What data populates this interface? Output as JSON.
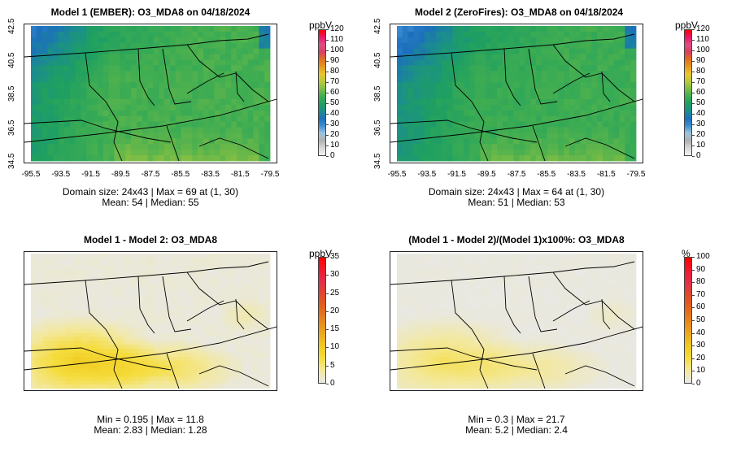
{
  "chart_data": [
    {
      "type": "heatmap",
      "title": "Model 1 (EMBER): O3_MDA8 on 04/18/2024",
      "unit": "ppbV",
      "x_ticks": [
        "-95.5",
        "-93.5",
        "-91.5",
        "-89.5",
        "-87.5",
        "-85.5",
        "-83.5",
        "-81.5",
        "-79.5"
      ],
      "y_ticks": [
        "42.5",
        "40.5",
        "38.5",
        "36.5",
        "34.5"
      ],
      "xlim": [
        -95.5,
        -79.5
      ],
      "ylim": [
        34.5,
        42.5
      ],
      "colorbar": {
        "min": 0,
        "max": 120,
        "labels": [
          "120",
          "110",
          "100",
          "90",
          "80",
          "70",
          "60",
          "50",
          "40",
          "30",
          "20",
          "10",
          "0"
        ]
      },
      "stats": {
        "line1": "Domain size: 24x43 | Max = 69 at (1, 30)",
        "line2": "Mean: 54 |  Median: 55"
      },
      "palette": "ozone",
      "grid": {
        "cols": 24,
        "rows": 43
      }
    },
    {
      "type": "heatmap",
      "title": "Model 2 (ZeroFires): O3_MDA8 on 04/18/2024",
      "unit": "ppbV",
      "x_ticks": [
        "-95.5",
        "-93.5",
        "-91.5",
        "-89.5",
        "-87.5",
        "-85.5",
        "-83.5",
        "-81.5",
        "-79.5"
      ],
      "y_ticks": [
        "42.5",
        "40.5",
        "38.5",
        "36.5",
        "34.5"
      ],
      "xlim": [
        -95.5,
        -79.5
      ],
      "ylim": [
        34.5,
        42.5
      ],
      "colorbar": {
        "min": 0,
        "max": 120,
        "labels": [
          "120",
          "110",
          "100",
          "90",
          "80",
          "70",
          "60",
          "50",
          "40",
          "30",
          "20",
          "10",
          "0"
        ]
      },
      "stats": {
        "line1": "Domain size: 24x43 | Max = 64 at (1, 30)",
        "line2": "Mean: 51 |  Median: 53"
      },
      "palette": "ozone",
      "grid": {
        "cols": 24,
        "rows": 43
      }
    },
    {
      "type": "heatmap",
      "title": "Model 1 - Model 2: O3_MDA8",
      "unit": "ppbV",
      "colorbar": {
        "min": 0,
        "max": 35,
        "labels": [
          "35",
          "30",
          "25",
          "20",
          "15",
          "10",
          "5",
          "0"
        ]
      },
      "stats": {
        "line1": "Min = 0.195 | Max = 11.8",
        "line2": "Mean: 2.83 |  Median: 1.28"
      },
      "palette": "difference"
    },
    {
      "type": "heatmap",
      "title": "(Model 1 - Model 2)/(Model 1)x100%: O3_MDA8",
      "unit": "%",
      "colorbar": {
        "min": 0,
        "max": 100,
        "labels": [
          "100",
          "90",
          "80",
          "70",
          "60",
          "50",
          "40",
          "30",
          "20",
          "10",
          "0"
        ]
      },
      "stats": {
        "line1": "Min = 0.3 | Max = 21.7",
        "line2": "Mean: 5.2 |  Median: 2.4"
      },
      "palette": "difference"
    }
  ],
  "colors": {
    "ozone_scale": [
      "#f2f2f2",
      "#d6d6d6",
      "#b0b0b0",
      "#9dc3e0",
      "#3d8fd1",
      "#1c6fbd",
      "#1b8f8a",
      "#1fa060",
      "#3fad52",
      "#7cbd45",
      "#b8c93c",
      "#e8c72e",
      "#e99a1e",
      "#e07020",
      "#d84060",
      "#e04d86",
      "#e8196a",
      "#ff0000"
    ],
    "diff_scale": [
      "#e8e8e8",
      "#f3e89a",
      "#f5dc3a",
      "#f0c820",
      "#eba61e",
      "#e6841c",
      "#e2641c",
      "#df4a2a",
      "#e2304a",
      "#ee1a2e",
      "#ff0000"
    ]
  }
}
